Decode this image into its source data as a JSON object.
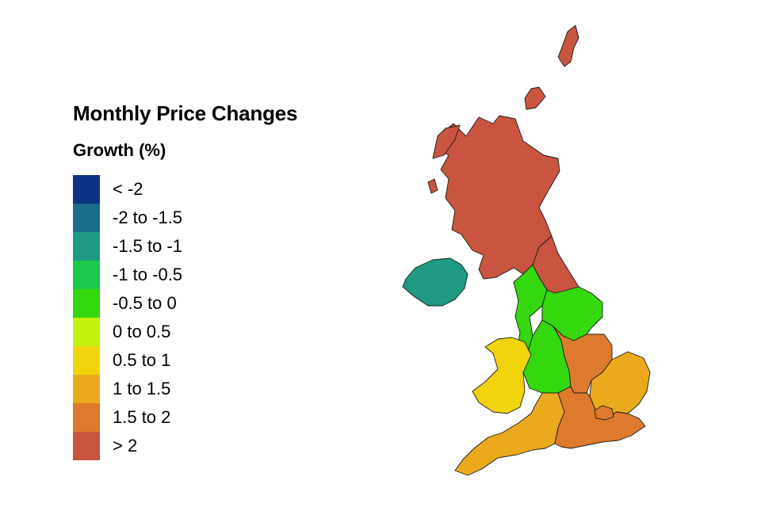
{
  "legend": {
    "title": "Monthly Price Changes",
    "subtitle": "Growth (%)",
    "items": [
      {
        "label": "< -2",
        "color": "#0c3383"
      },
      {
        "label": "-2 to -1.5",
        "color": "#1a6e8a"
      },
      {
        "label": "-1.5 to -1",
        "color": "#1e9a83"
      },
      {
        "label": "-1 to -0.5",
        "color": "#1cc94a"
      },
      {
        "label": "-0.5 to 0",
        "color": "#34d80e"
      },
      {
        "label": "0 to 0.5",
        "color": "#c2f20e"
      },
      {
        "label": "0.5 to 1",
        "color": "#f2d40d"
      },
      {
        "label": "1 to 1.5",
        "color": "#eba91e"
      },
      {
        "label": "1.5 to 2",
        "color": "#de7a2d"
      },
      {
        "label": "> 2",
        "color": "#c9543f"
      }
    ]
  },
  "map": {
    "regions": [
      {
        "id": "scotland",
        "category": "> 2",
        "color": "#c9543f"
      },
      {
        "id": "north-east",
        "category": "> 2",
        "color": "#c9543f"
      },
      {
        "id": "northern-ireland",
        "category": "-1.5 to -1",
        "color": "#1e9a83"
      },
      {
        "id": "north-west",
        "category": "-0.5 to 0",
        "color": "#34d80e"
      },
      {
        "id": "yorkshire-and-the-humber",
        "category": "-0.5 to 0",
        "color": "#34d80e"
      },
      {
        "id": "west-midlands",
        "category": "-0.5 to 0",
        "color": "#34d80e"
      },
      {
        "id": "wales",
        "category": "0.5 to 1",
        "color": "#f2d40d"
      },
      {
        "id": "east-midlands",
        "category": "1.5 to 2",
        "color": "#de7a2d"
      },
      {
        "id": "east-of-england",
        "category": "1 to 1.5",
        "color": "#eba91e"
      },
      {
        "id": "south-west",
        "category": "1 to 1.5",
        "color": "#eba91e"
      },
      {
        "id": "south-east",
        "category": "1.5 to 2",
        "color": "#de7a2d"
      },
      {
        "id": "london",
        "category": "1.5 to 2",
        "color": "#de7a2d"
      }
    ]
  }
}
